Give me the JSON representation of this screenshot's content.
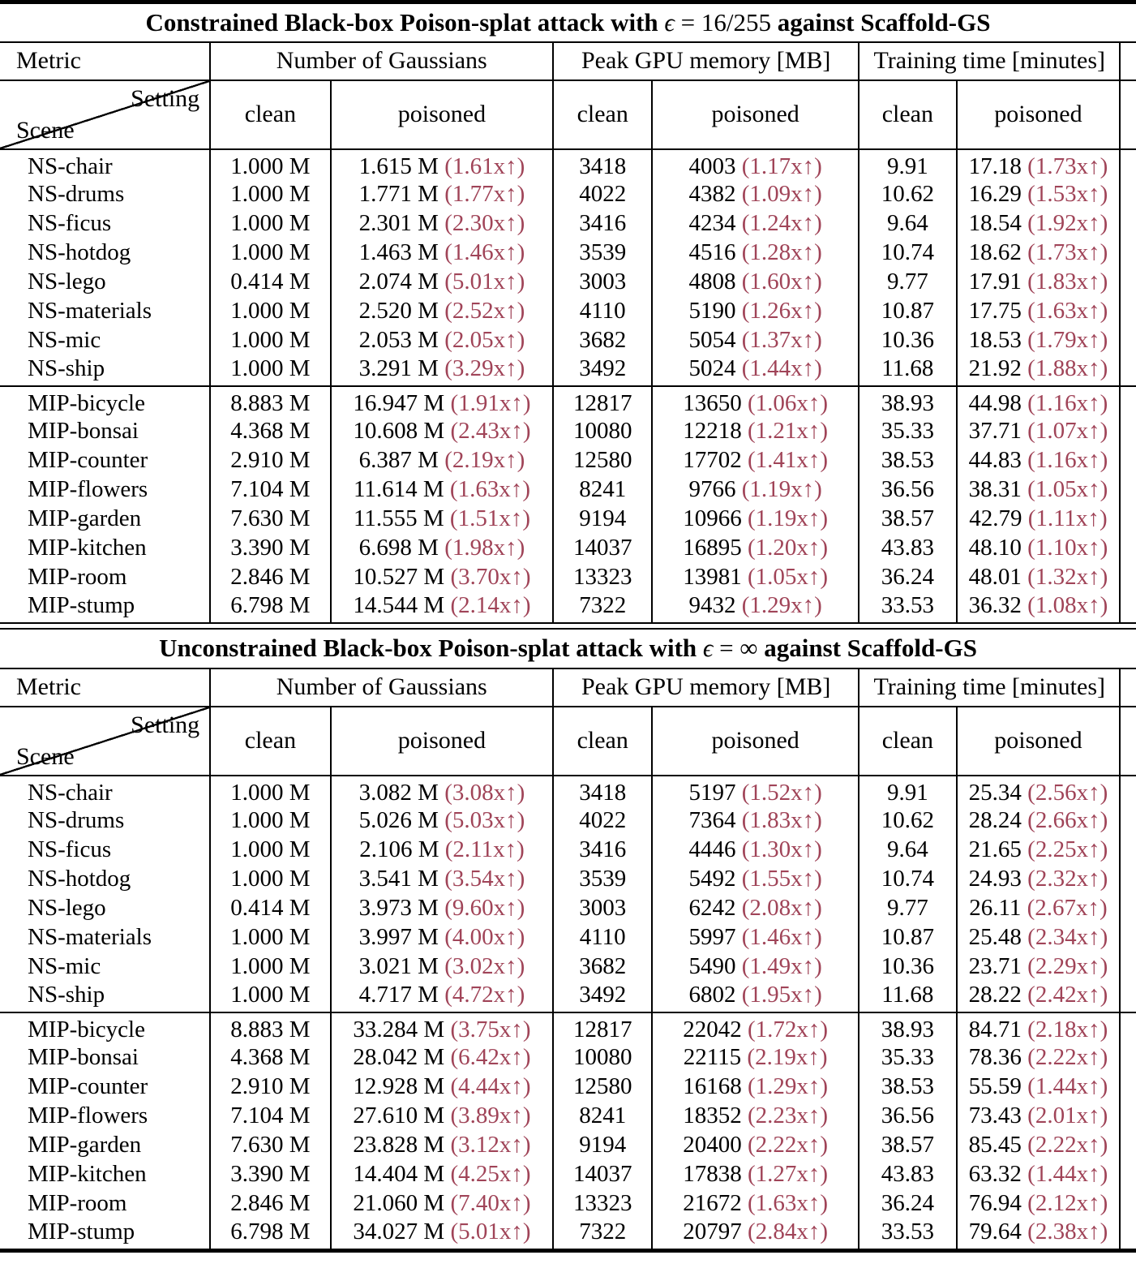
{
  "colors": {
    "ratio_red": "#a04458",
    "rule_black": "#000000"
  },
  "header": {
    "metric": "Metric",
    "gaussians": "Number of Gaussians",
    "gpu": "Peak GPU memory [MB]",
    "time": "Training time [minutes]",
    "clean": "clean",
    "poisoned": "poisoned",
    "setting": "Setting",
    "scene": "Scene"
  },
  "tables": [
    {
      "title": {
        "pre": "Constrained Black-box Poison-splat attack with ",
        "eps": "ϵ",
        "rest": " = 16/255 ",
        "post": "against Scaffold-GS"
      },
      "ns_rows": [
        {
          "scene": "NS-chair",
          "g_clean": "1.000 M",
          "g_poison": "1.615 M",
          "g_ratio": "(1.61x↑)",
          "m_clean": "3418",
          "m_poison": "4003",
          "m_ratio": "(1.17x↑)",
          "t_clean": "9.91",
          "t_poison": "17.18",
          "t_ratio": "(1.73x↑)"
        },
        {
          "scene": "NS-drums",
          "g_clean": "1.000 M",
          "g_poison": "1.771 M",
          "g_ratio": "(1.77x↑)",
          "m_clean": "4022",
          "m_poison": "4382",
          "m_ratio": "(1.09x↑)",
          "t_clean": "10.62",
          "t_poison": "16.29",
          "t_ratio": "(1.53x↑)"
        },
        {
          "scene": "NS-ficus",
          "g_clean": "1.000 M",
          "g_poison": "2.301 M",
          "g_ratio": "(2.30x↑)",
          "m_clean": "3416",
          "m_poison": "4234",
          "m_ratio": "(1.24x↑)",
          "t_clean": "9.64",
          "t_poison": "18.54",
          "t_ratio": "(1.92x↑)"
        },
        {
          "scene": "NS-hotdog",
          "g_clean": "1.000 M",
          "g_poison": "1.463 M",
          "g_ratio": "(1.46x↑)",
          "m_clean": "3539",
          "m_poison": "4516",
          "m_ratio": "(1.28x↑)",
          "t_clean": "10.74",
          "t_poison": "18.62",
          "t_ratio": "(1.73x↑)"
        },
        {
          "scene": "NS-lego",
          "g_clean": "0.414 M",
          "g_poison": "2.074 M",
          "g_ratio": "(5.01x↑)",
          "m_clean": "3003",
          "m_poison": "4808",
          "m_ratio": "(1.60x↑)",
          "t_clean": "9.77",
          "t_poison": "17.91",
          "t_ratio": "(1.83x↑)"
        },
        {
          "scene": "NS-materials",
          "g_clean": "1.000 M",
          "g_poison": "2.520 M",
          "g_ratio": "(2.52x↑)",
          "m_clean": "4110",
          "m_poison": "5190",
          "m_ratio": "(1.26x↑)",
          "t_clean": "10.87",
          "t_poison": "17.75",
          "t_ratio": "(1.63x↑)"
        },
        {
          "scene": "NS-mic",
          "g_clean": "1.000 M",
          "g_poison": "2.053 M",
          "g_ratio": "(2.05x↑)",
          "m_clean": "3682",
          "m_poison": "5054",
          "m_ratio": "(1.37x↑)",
          "t_clean": "10.36",
          "t_poison": "18.53",
          "t_ratio": "(1.79x↑)"
        },
        {
          "scene": "NS-ship",
          "g_clean": "1.000 M",
          "g_poison": "3.291 M",
          "g_ratio": "(3.29x↑)",
          "m_clean": "3492",
          "m_poison": "5024",
          "m_ratio": "(1.44x↑)",
          "t_clean": "11.68",
          "t_poison": "21.92",
          "t_ratio": "(1.88x↑)"
        }
      ],
      "mip_rows": [
        {
          "scene": "MIP-bicycle",
          "g_clean": "8.883 M",
          "g_poison": "16.947 M",
          "g_ratio": "(1.91x↑)",
          "m_clean": "12817",
          "m_poison": "13650",
          "m_ratio": "(1.06x↑)",
          "t_clean": "38.93",
          "t_poison": "44.98",
          "t_ratio": "(1.16x↑)"
        },
        {
          "scene": "MIP-bonsai",
          "g_clean": "4.368 M",
          "g_poison": "10.608 M",
          "g_ratio": "(2.43x↑)",
          "m_clean": "10080",
          "m_poison": "12218",
          "m_ratio": "(1.21x↑)",
          "t_clean": "35.33",
          "t_poison": "37.71",
          "t_ratio": "(1.07x↑)"
        },
        {
          "scene": "MIP-counter",
          "g_clean": "2.910 M",
          "g_poison": "6.387 M",
          "g_ratio": "(2.19x↑)",
          "m_clean": "12580",
          "m_poison": "17702",
          "m_ratio": "(1.41x↑)",
          "t_clean": "38.53",
          "t_poison": "44.83",
          "t_ratio": "(1.16x↑)"
        },
        {
          "scene": "MIP-flowers",
          "g_clean": "7.104 M",
          "g_poison": "11.614 M",
          "g_ratio": "(1.63x↑)",
          "m_clean": "8241",
          "m_poison": "9766",
          "m_ratio": "(1.19x↑)",
          "t_clean": "36.56",
          "t_poison": "38.31",
          "t_ratio": "(1.05x↑)"
        },
        {
          "scene": "MIP-garden",
          "g_clean": "7.630 M",
          "g_poison": "11.555 M",
          "g_ratio": "(1.51x↑)",
          "m_clean": "9194",
          "m_poison": "10966",
          "m_ratio": "(1.19x↑)",
          "t_clean": "38.57",
          "t_poison": "42.79",
          "t_ratio": "(1.11x↑)"
        },
        {
          "scene": "MIP-kitchen",
          "g_clean": "3.390 M",
          "g_poison": "6.698 M",
          "g_ratio": "(1.98x↑)",
          "m_clean": "14037",
          "m_poison": "16895",
          "m_ratio": "(1.20x↑)",
          "t_clean": "43.83",
          "t_poison": "48.10",
          "t_ratio": "(1.10x↑)"
        },
        {
          "scene": "MIP-room",
          "g_clean": "2.846 M",
          "g_poison": "10.527 M",
          "g_ratio": "(3.70x↑)",
          "m_clean": "13323",
          "m_poison": "13981",
          "m_ratio": "(1.05x↑)",
          "t_clean": "36.24",
          "t_poison": "48.01",
          "t_ratio": "(1.32x↑)"
        },
        {
          "scene": "MIP-stump",
          "g_clean": "6.798 M",
          "g_poison": "14.544 M",
          "g_ratio": "(2.14x↑)",
          "m_clean": "7322",
          "m_poison": "9432",
          "m_ratio": "(1.29x↑)",
          "t_clean": "33.53",
          "t_poison": "36.32",
          "t_ratio": "(1.08x↑)"
        }
      ]
    },
    {
      "title": {
        "pre": "Unconstrained Black-box Poison-splat attack with ",
        "eps": "ϵ",
        "rest": " = ∞ ",
        "post": "against Scaffold-GS"
      },
      "ns_rows": [
        {
          "scene": "NS-chair",
          "g_clean": "1.000 M",
          "g_poison": "3.082 M",
          "g_ratio": "(3.08x↑)",
          "m_clean": "3418",
          "m_poison": "5197",
          "m_ratio": "(1.52x↑)",
          "t_clean": "9.91",
          "t_poison": "25.34",
          "t_ratio": "(2.56x↑)"
        },
        {
          "scene": "NS-drums",
          "g_clean": "1.000 M",
          "g_poison": "5.026 M",
          "g_ratio": "(5.03x↑)",
          "m_clean": "4022",
          "m_poison": "7364",
          "m_ratio": "(1.83x↑)",
          "t_clean": "10.62",
          "t_poison": "28.24",
          "t_ratio": "(2.66x↑)"
        },
        {
          "scene": "NS-ficus",
          "g_clean": "1.000 M",
          "g_poison": "2.106 M",
          "g_ratio": "(2.11x↑)",
          "m_clean": "3416",
          "m_poison": "4446",
          "m_ratio": "(1.30x↑)",
          "t_clean": "9.64",
          "t_poison": "21.65",
          "t_ratio": "(2.25x↑)"
        },
        {
          "scene": "NS-hotdog",
          "g_clean": "1.000 M",
          "g_poison": "3.541 M",
          "g_ratio": "(3.54x↑)",
          "m_clean": "3539",
          "m_poison": "5492",
          "m_ratio": "(1.55x↑)",
          "t_clean": "10.74",
          "t_poison": "24.93",
          "t_ratio": "(2.32x↑)"
        },
        {
          "scene": "NS-lego",
          "g_clean": "0.414 M",
          "g_poison": "3.973 M",
          "g_ratio": "(9.60x↑)",
          "m_clean": "3003",
          "m_poison": "6242",
          "m_ratio": "(2.08x↑)",
          "t_clean": "9.77",
          "t_poison": "26.11",
          "t_ratio": "(2.67x↑)"
        },
        {
          "scene": "NS-materials",
          "g_clean": "1.000 M",
          "g_poison": "3.997 M",
          "g_ratio": "(4.00x↑)",
          "m_clean": "4110",
          "m_poison": "5997",
          "m_ratio": "(1.46x↑)",
          "t_clean": "10.87",
          "t_poison": "25.48",
          "t_ratio": "(2.34x↑)"
        },
        {
          "scene": "NS-mic",
          "g_clean": "1.000 M",
          "g_poison": "3.021 M",
          "g_ratio": "(3.02x↑)",
          "m_clean": "3682",
          "m_poison": "5490",
          "m_ratio": "(1.49x↑)",
          "t_clean": "10.36",
          "t_poison": "23.71",
          "t_ratio": "(2.29x↑)"
        },
        {
          "scene": "NS-ship",
          "g_clean": "1.000 M",
          "g_poison": "4.717 M",
          "g_ratio": "(4.72x↑)",
          "m_clean": "3492",
          "m_poison": "6802",
          "m_ratio": "(1.95x↑)",
          "t_clean": "11.68",
          "t_poison": "28.22",
          "t_ratio": "(2.42x↑)"
        }
      ],
      "mip_rows": [
        {
          "scene": "MIP-bicycle",
          "g_clean": "8.883 M",
          "g_poison": "33.284 M",
          "g_ratio": "(3.75x↑)",
          "m_clean": "12817",
          "m_poison": "22042",
          "m_ratio": "(1.72x↑)",
          "t_clean": "38.93",
          "t_poison": "84.71",
          "t_ratio": "(2.18x↑)"
        },
        {
          "scene": "MIP-bonsai",
          "g_clean": "4.368 M",
          "g_poison": "28.042 M",
          "g_ratio": "(6.42x↑)",
          "m_clean": "10080",
          "m_poison": "22115",
          "m_ratio": "(2.19x↑)",
          "t_clean": "35.33",
          "t_poison": "78.36",
          "t_ratio": "(2.22x↑)"
        },
        {
          "scene": "MIP-counter",
          "g_clean": "2.910 M",
          "g_poison": "12.928 M",
          "g_ratio": "(4.44x↑)",
          "m_clean": "12580",
          "m_poison": "16168",
          "m_ratio": "(1.29x↑)",
          "t_clean": "38.53",
          "t_poison": "55.59",
          "t_ratio": "(1.44x↑)"
        },
        {
          "scene": "MIP-flowers",
          "g_clean": "7.104 M",
          "g_poison": "27.610 M",
          "g_ratio": "(3.89x↑)",
          "m_clean": "8241",
          "m_poison": "18352",
          "m_ratio": "(2.23x↑)",
          "t_clean": "36.56",
          "t_poison": "73.43",
          "t_ratio": "(2.01x↑)"
        },
        {
          "scene": "MIP-garden",
          "g_clean": "7.630 M",
          "g_poison": "23.828 M",
          "g_ratio": "(3.12x↑)",
          "m_clean": "9194",
          "m_poison": "20400",
          "m_ratio": "(2.22x↑)",
          "t_clean": "38.57",
          "t_poison": "85.45",
          "t_ratio": "(2.22x↑)"
        },
        {
          "scene": "MIP-kitchen",
          "g_clean": "3.390 M",
          "g_poison": "14.404 M",
          "g_ratio": "(4.25x↑)",
          "m_clean": "14037",
          "m_poison": "17838",
          "m_ratio": "(1.27x↑)",
          "t_clean": "43.83",
          "t_poison": "63.32",
          "t_ratio": "(1.44x↑)"
        },
        {
          "scene": "MIP-room",
          "g_clean": "2.846 M",
          "g_poison": "21.060 M",
          "g_ratio": "(7.40x↑)",
          "m_clean": "13323",
          "m_poison": "21672",
          "m_ratio": "(1.63x↑)",
          "t_clean": "36.24",
          "t_poison": "76.94",
          "t_ratio": "(2.12x↑)"
        },
        {
          "scene": "MIP-stump",
          "g_clean": "6.798 M",
          "g_poison": "34.027 M",
          "g_ratio": "(5.01x↑)",
          "m_clean": "7322",
          "m_poison": "20797",
          "m_ratio": "(2.84x↑)",
          "t_clean": "33.53",
          "t_poison": "79.64",
          "t_ratio": "(2.38x↑)"
        }
      ]
    }
  ]
}
